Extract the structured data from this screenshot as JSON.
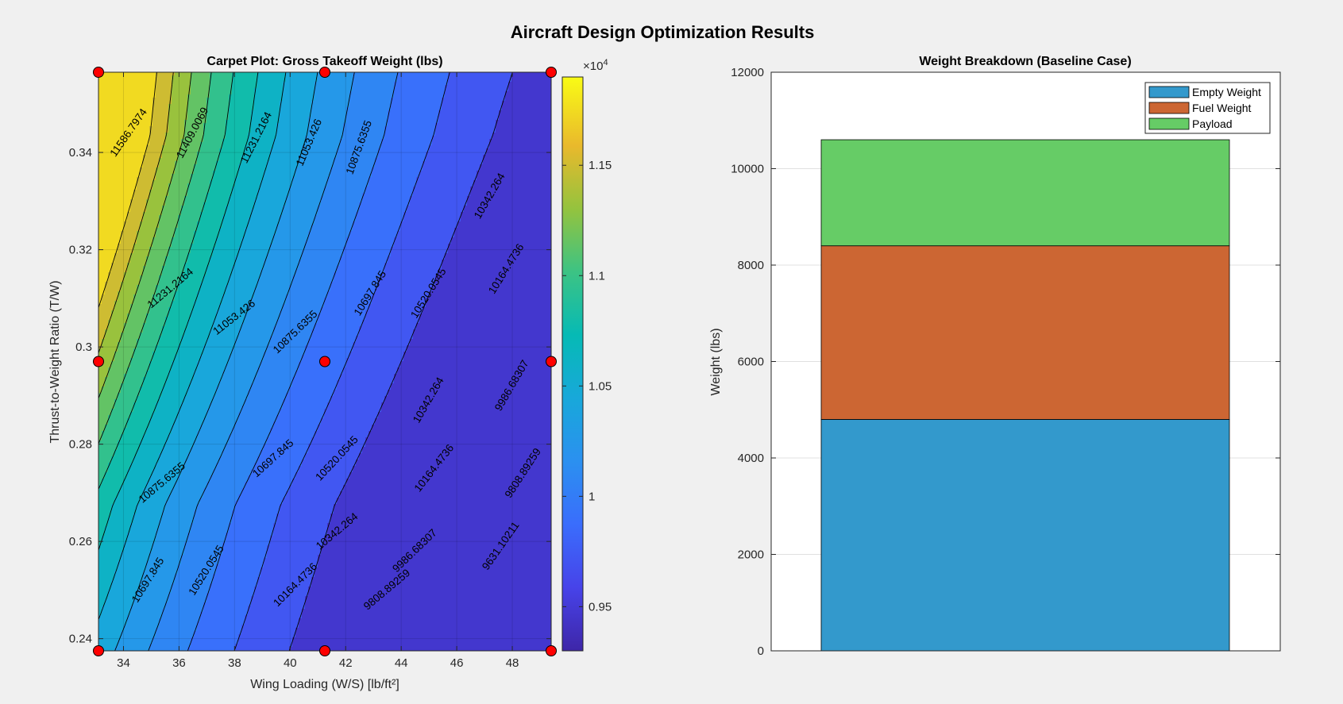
{
  "figure": {
    "suptitle": "Aircraft Design Optimization Results"
  },
  "colorbar": {
    "exponent_label": "×10",
    "exponent_power": "4",
    "tick_labels": [
      "0.95",
      "1",
      "1.05",
      "1.1",
      "1.15"
    ]
  },
  "chart_data": [
    {
      "type": "contour",
      "title": "Carpet Plot: Gross Takeoff Weight (lbs)",
      "xlabel": "Wing Loading (W/S) [lb/ft²]",
      "ylabel": "Thrust-to-Weight Ratio (T/W)",
      "xlim": [
        33.1,
        49.4
      ],
      "ylim": [
        0.2375,
        0.3565
      ],
      "xticks": [
        34,
        36,
        38,
        40,
        42,
        44,
        46,
        48
      ],
      "yticks": [
        0.24,
        0.26,
        0.28,
        0.3,
        0.32,
        0.34
      ],
      "ytick_labels": [
        "0.24",
        "0.26",
        "0.28",
        "0.3",
        "0.32",
        "0.34"
      ],
      "colormap": "parula",
      "clim": [
        9300,
        11900
      ],
      "grid": true,
      "colorbar": true,
      "contour_levels": [
        9631.10211,
        9808.89259,
        9986.68307,
        10164.4736,
        10342.264,
        10520.0545,
        10697.845,
        10875.6355,
        11053.426,
        11231.2164,
        11409.0069,
        11586.7974
      ],
      "contour_labels": [
        {
          "text": "11586.7974",
          "x": 34.2,
          "y": 0.344,
          "angle": -55
        },
        {
          "text": "11409.0069",
          "x": 36.5,
          "y": 0.344,
          "angle": -62
        },
        {
          "text": "11231.2164",
          "x": 38.8,
          "y": 0.343,
          "angle": -63
        },
        {
          "text": "11053.426",
          "x": 40.7,
          "y": 0.342,
          "angle": -67
        },
        {
          "text": "10875.6355",
          "x": 42.5,
          "y": 0.341,
          "angle": -70
        },
        {
          "text": "10342.264",
          "x": 47.2,
          "y": 0.331,
          "angle": -60
        },
        {
          "text": "10164.4736",
          "x": 47.8,
          "y": 0.316,
          "angle": -58
        },
        {
          "text": "11231.2164",
          "x": 35.7,
          "y": 0.312,
          "angle": -40
        },
        {
          "text": "11053.426",
          "x": 38.0,
          "y": 0.306,
          "angle": -38
        },
        {
          "text": "10875.6355",
          "x": 40.2,
          "y": 0.303,
          "angle": -44
        },
        {
          "text": "10697.845",
          "x": 42.9,
          "y": 0.311,
          "angle": -58
        },
        {
          "text": "10520.0545",
          "x": 45.0,
          "y": 0.311,
          "angle": -58
        },
        {
          "text": "10342.264",
          "x": 45.0,
          "y": 0.289,
          "angle": -60
        },
        {
          "text": "9986.68307",
          "x": 48.0,
          "y": 0.292,
          "angle": -60
        },
        {
          "text": "10875.6355",
          "x": 35.4,
          "y": 0.272,
          "angle": -40
        },
        {
          "text": "10697.845",
          "x": 39.4,
          "y": 0.277,
          "angle": -42
        },
        {
          "text": "10520.0545",
          "x": 41.7,
          "y": 0.277,
          "angle": -47
        },
        {
          "text": "10164.4736",
          "x": 45.2,
          "y": 0.275,
          "angle": -52
        },
        {
          "text": "9808.89259",
          "x": 48.4,
          "y": 0.274,
          "angle": -57
        },
        {
          "text": "10342.264",
          "x": 41.7,
          "y": 0.262,
          "angle": -40
        },
        {
          "text": "9986.68307",
          "x": 44.5,
          "y": 0.258,
          "angle": -44
        },
        {
          "text": "9631.10211",
          "x": 47.6,
          "y": 0.259,
          "angle": -55
        },
        {
          "text": "10697.845",
          "x": 34.9,
          "y": 0.252,
          "angle": -58
        },
        {
          "text": "10520.0545",
          "x": 37.0,
          "y": 0.254,
          "angle": -58
        },
        {
          "text": "10164.4736",
          "x": 40.2,
          "y": 0.251,
          "angle": -45
        },
        {
          "text": "9808.89259",
          "x": 43.5,
          "y": 0.25,
          "angle": -40
        }
      ],
      "design_points": {
        "x": [
          33.1,
          41.25,
          49.4,
          33.1,
          41.25,
          49.4,
          33.1,
          41.25,
          49.4
        ],
        "y": [
          0.2375,
          0.2375,
          0.2375,
          0.297,
          0.297,
          0.297,
          0.3565,
          0.3565,
          0.3565
        ],
        "color": "#ff0000"
      }
    },
    {
      "type": "stacked_bar",
      "title": "Weight Breakdown (Baseline Case)",
      "xlabel": "",
      "ylabel": "Weight (lbs)",
      "ylim": [
        0,
        12000
      ],
      "yticks": [
        0,
        2000,
        4000,
        6000,
        8000,
        10000,
        12000
      ],
      "grid": true,
      "legend_position": "top-right",
      "series": [
        {
          "name": "Empty Weight",
          "values": [
            4800
          ],
          "color": "#3399cc"
        },
        {
          "name": "Fuel Weight",
          "values": [
            3600
          ],
          "color": "#cc6633"
        },
        {
          "name": "Payload",
          "values": [
            2200
          ],
          "color": "#66cc66"
        }
      ]
    }
  ]
}
